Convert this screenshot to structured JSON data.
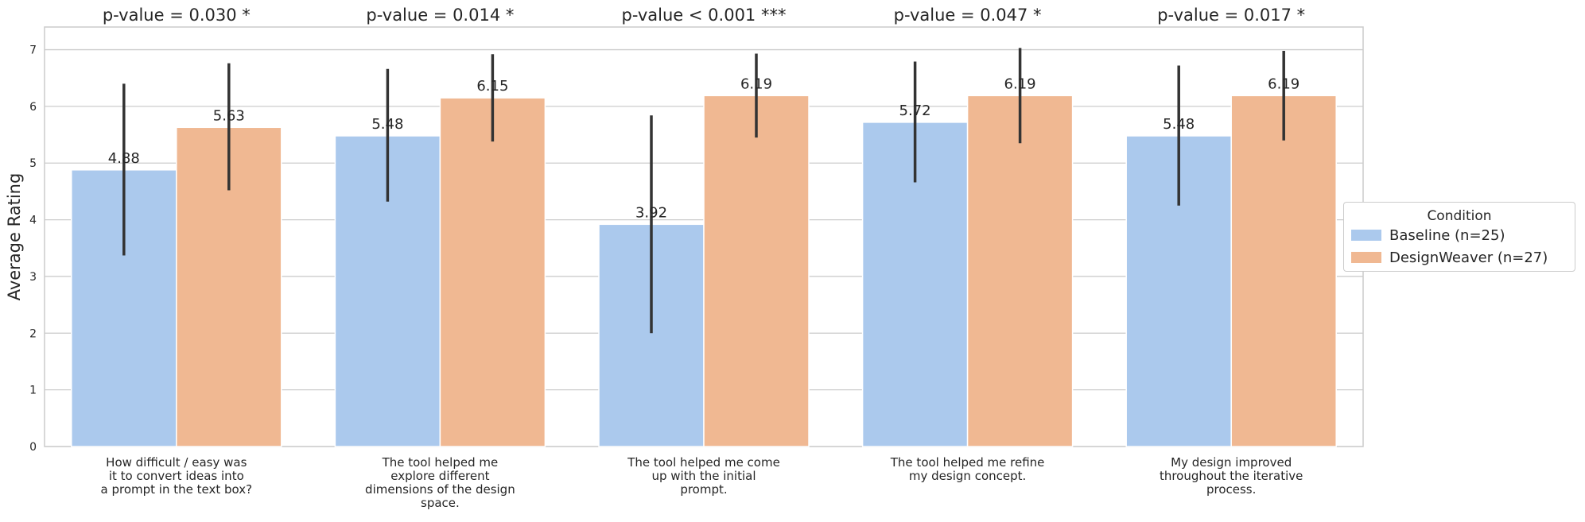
{
  "chart_data": {
    "type": "bar",
    "categories": [
      "How difficult / easy was\nit to convert ideas into\na prompt in the text box?",
      "The tool helped me\nexplore different\ndimensions of the design\nspace.",
      "The tool helped me come\nup with the initial\nprompt.",
      "The tool helped me refine\nmy design concept.",
      "My design improved\nthroughout the iterative\nprocess."
    ],
    "titles": [
      "p-value = 0.030 *",
      "p-value = 0.014 *",
      "p-value < 0.001 ***",
      "p-value = 0.047 *",
      "p-value = 0.017 *"
    ],
    "series": [
      {
        "name": "Baseline (n=25)",
        "color": "#abc9ed",
        "values": [
          4.88,
          5.48,
          3.92,
          5.72,
          5.48
        ],
        "labels": [
          "4.88",
          "5.48",
          "3.92",
          "5.72",
          "5.48"
        ],
        "err_low": [
          3.37,
          4.32,
          2.0,
          4.66,
          4.25
        ],
        "err_high": [
          6.4,
          6.66,
          5.84,
          6.79,
          6.72
        ]
      },
      {
        "name": "DesignWeaver (n=27)",
        "color": "#f0b892",
        "values": [
          5.63,
          6.15,
          6.19,
          6.19,
          6.19
        ],
        "labels": [
          "5.63",
          "6.15",
          "6.19",
          "6.19",
          "6.19"
        ],
        "err_low": [
          4.52,
          5.38,
          5.45,
          5.35,
          5.4
        ],
        "err_high": [
          6.76,
          6.92,
          6.93,
          7.03,
          6.98
        ]
      }
    ],
    "ylabel": "Average Rating",
    "xlabel": "",
    "ylim": [
      0,
      7.4
    ],
    "yticks": [
      "0",
      "1",
      "2",
      "3",
      "4",
      "5",
      "6",
      "7"
    ],
    "grid": true,
    "legend": {
      "title": "Condition",
      "placement": "center-right outside"
    }
  }
}
